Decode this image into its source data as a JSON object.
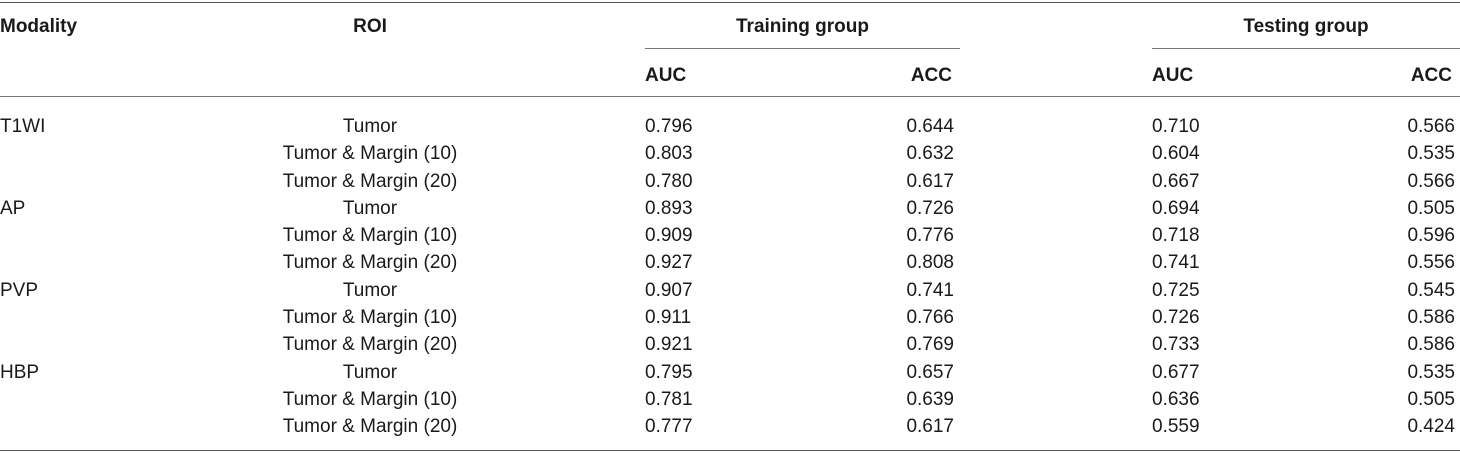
{
  "header": {
    "modality": "Modality",
    "roi": "ROI",
    "training_group": "Training group",
    "testing_group": "Testing group",
    "auc": "AUC",
    "acc": "ACC"
  },
  "rows": [
    {
      "modality": "T1WI",
      "roi": "Tumor",
      "train_auc": "0.796",
      "train_acc": "0.644",
      "test_auc": "0.710",
      "test_acc": "0.566"
    },
    {
      "modality": "",
      "roi": "Tumor & Margin (10)",
      "train_auc": "0.803",
      "train_acc": "0.632",
      "test_auc": "0.604",
      "test_acc": "0.535"
    },
    {
      "modality": "",
      "roi": "Tumor & Margin (20)",
      "train_auc": "0.780",
      "train_acc": "0.617",
      "test_auc": "0.667",
      "test_acc": "0.566"
    },
    {
      "modality": "AP",
      "roi": "Tumor",
      "train_auc": "0.893",
      "train_acc": "0.726",
      "test_auc": "0.694",
      "test_acc": "0.505"
    },
    {
      "modality": "",
      "roi": "Tumor & Margin (10)",
      "train_auc": "0.909",
      "train_acc": "0.776",
      "test_auc": "0.718",
      "test_acc": "0.596"
    },
    {
      "modality": "",
      "roi": "Tumor & Margin (20)",
      "train_auc": "0.927",
      "train_acc": "0.808",
      "test_auc": "0.741",
      "test_acc": "0.556"
    },
    {
      "modality": "PVP",
      "roi": "Tumor",
      "train_auc": "0.907",
      "train_acc": "0.741",
      "test_auc": "0.725",
      "test_acc": "0.545"
    },
    {
      "modality": "",
      "roi": "Tumor & Margin (10)",
      "train_auc": "0.911",
      "train_acc": "0.766",
      "test_auc": "0.726",
      "test_acc": "0.586"
    },
    {
      "modality": "",
      "roi": "Tumor & Margin (20)",
      "train_auc": "0.921",
      "train_acc": "0.769",
      "test_auc": "0.733",
      "test_acc": "0.586"
    },
    {
      "modality": "HBP",
      "roi": "Tumor",
      "train_auc": "0.795",
      "train_acc": "0.657",
      "test_auc": "0.677",
      "test_acc": "0.535"
    },
    {
      "modality": "",
      "roi": "Tumor & Margin (10)",
      "train_auc": "0.781",
      "train_acc": "0.639",
      "test_auc": "0.636",
      "test_acc": "0.505"
    },
    {
      "modality": "",
      "roi": "Tumor & Margin (20)",
      "train_auc": "0.777",
      "train_acc": "0.617",
      "test_auc": "0.559",
      "test_acc": "0.424"
    }
  ]
}
